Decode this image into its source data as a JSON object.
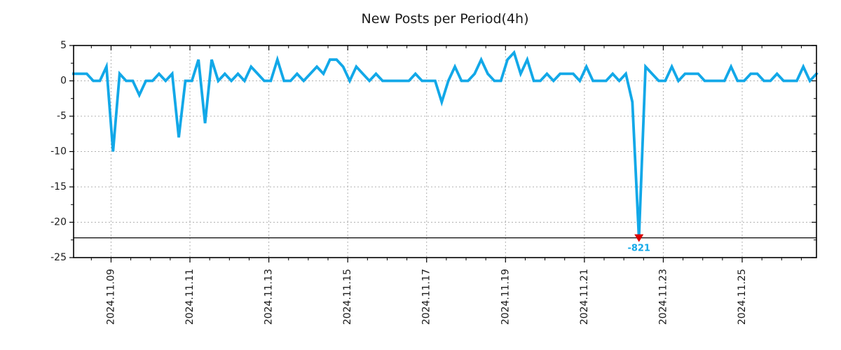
{
  "chart_data": {
    "type": "line",
    "title": "New Posts per Period(4h)",
    "period_per_point": "4h",
    "line_color": "#12a8e8",
    "grid": true,
    "grid_color": "#b0b0b0",
    "ylim": [
      -25,
      5
    ],
    "yticks": [
      5,
      0,
      -5,
      -10,
      -15,
      -20,
      -25
    ],
    "y_minor_step": 2.5,
    "xticks": [
      {
        "label": "2024.11.09",
        "i": 5.7
      },
      {
        "label": "2024.11.11",
        "i": 17.7
      },
      {
        "label": "2024.11.13",
        "i": 29.7
      },
      {
        "label": "2024.11.15",
        "i": 41.7
      },
      {
        "label": "2024.11.17",
        "i": 53.7
      },
      {
        "label": "2024.11.19",
        "i": 65.7
      },
      {
        "label": "2024.11.21",
        "i": 77.7
      },
      {
        "label": "2024.11.23",
        "i": 89.7
      },
      {
        "label": "2024.11.25",
        "i": 101.7
      }
    ],
    "x_minor_step_points": 3,
    "values": [
      1,
      1,
      1,
      0,
      0,
      2,
      -10,
      1,
      0,
      0,
      -2,
      0,
      0,
      1,
      0,
      1,
      -8,
      0,
      0,
      3,
      -6,
      3,
      0,
      1,
      0,
      1,
      0,
      2,
      1,
      0,
      0,
      3,
      0,
      0,
      1,
      0,
      1,
      2,
      1,
      3,
      3,
      2,
      0,
      2,
      1,
      0,
      1,
      0,
      0,
      0,
      0,
      0,
      1,
      0,
      0,
      0,
      -3,
      0,
      2,
      0,
      0,
      1,
      3,
      1,
      0,
      0,
      3,
      4,
      1,
      3,
      0,
      0,
      1,
      0,
      1,
      1,
      1,
      0,
      2,
      0,
      0,
      0,
      1,
      0,
      1,
      -3,
      -821,
      2,
      1,
      0,
      0,
      2,
      0,
      1,
      1,
      1,
      0,
      0,
      0,
      0,
      2,
      0,
      0,
      1,
      1,
      0,
      0,
      1,
      0,
      0,
      0,
      2,
      0,
      1
    ],
    "annotation": {
      "label": "-821",
      "point_index": 86,
      "actual_value": -821,
      "clip_display_value": -22.3,
      "clip_line_value": -22.2,
      "marker_shape": "triangle-down",
      "marker_color": "#d90000",
      "label_color": "#12a8e8"
    }
  }
}
